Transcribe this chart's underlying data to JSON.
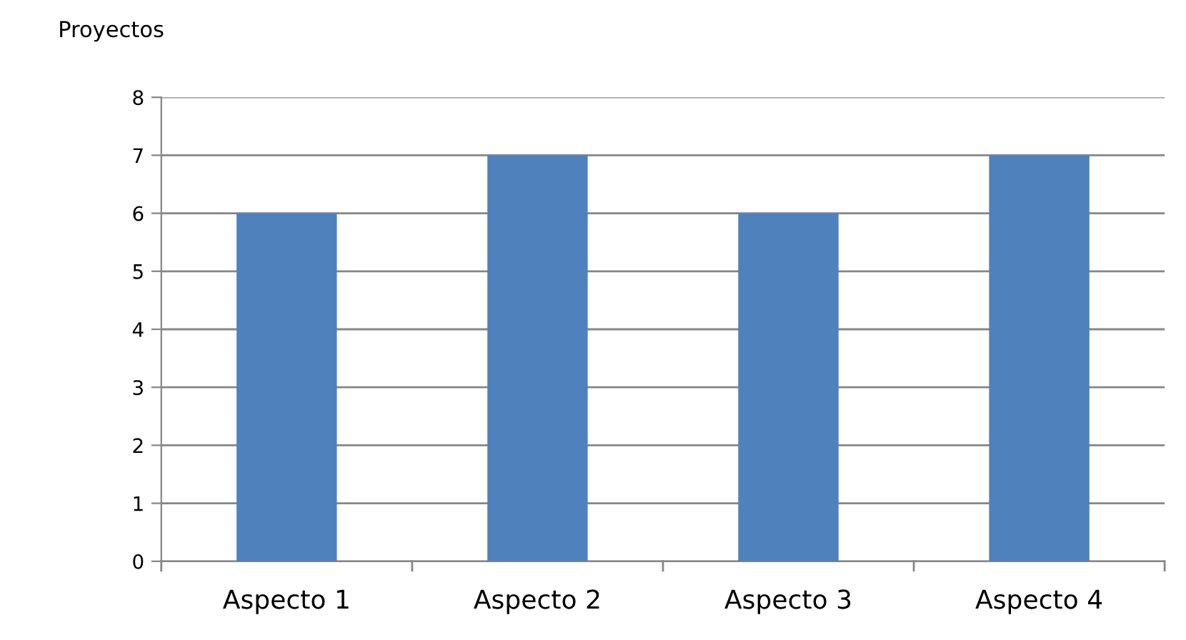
{
  "chart_data": {
    "type": "bar",
    "ylabel": "Proyectos",
    "categories": [
      "Aspecto 1",
      "Aspecto 2",
      "Aspecto 3",
      "Aspecto 4"
    ],
    "values": [
      6,
      7,
      6,
      7
    ],
    "color": "#4f81bd",
    "ylim": [
      0,
      8
    ],
    "yticks": [
      0,
      1,
      2,
      3,
      4,
      5,
      6,
      7,
      8
    ],
    "grid": "y",
    "legend": false
  }
}
